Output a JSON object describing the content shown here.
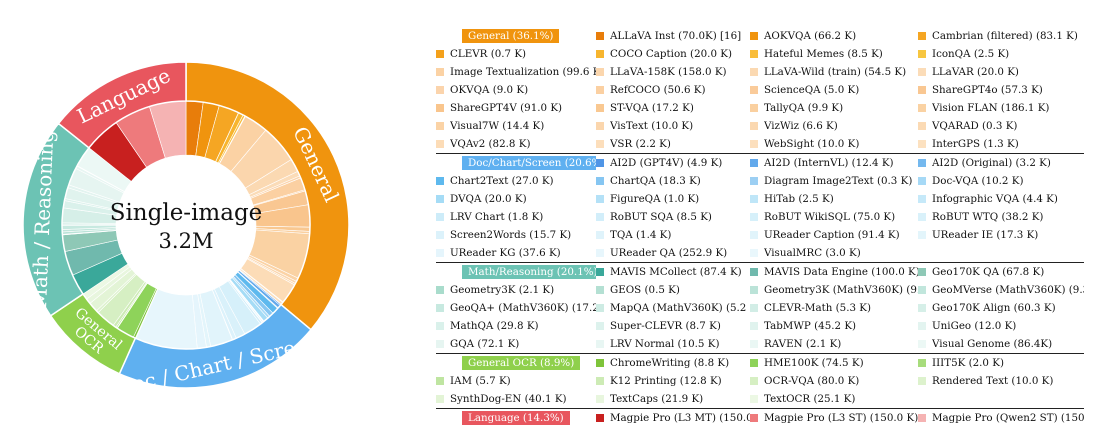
{
  "center": {
    "title": "Single-image",
    "total": "3.2M"
  },
  "chart_data": {
    "type": "sunburst",
    "center_label": "Single-image 3.2M",
    "groups": [
      {
        "name": "General",
        "label": "General (36.1%)",
        "percent": 36.1,
        "color": "#f0940e",
        "ring_labels": [
          "General"
        ],
        "items": [
          {
            "name": "ALLaVA Inst",
            "label": "ALLaVA Inst (70.0K) [16]",
            "value": 70.0,
            "color": "#e87d0a"
          },
          {
            "name": "AOKVQA",
            "label": "AOKVQA (66.2 K)",
            "value": 66.2,
            "color": "#f0940e"
          },
          {
            "name": "Cambrian (filtered)",
            "label": "Cambrian (filtered) (83.1 K)",
            "value": 83.1,
            "color": "#f5a623"
          },
          {
            "name": "CLEVR",
            "label": "CLEVR (0.7 K)",
            "value": 0.7,
            "color": "#f4a11b"
          },
          {
            "name": "COCO Caption",
            "label": "COCO Caption (20.0 K)",
            "value": 20.0,
            "color": "#f7b52e"
          },
          {
            "name": "Hateful Memes",
            "label": "Hateful Memes (8.5 K)",
            "value": 8.5,
            "color": "#f9bd3a"
          },
          {
            "name": "IconQA",
            "label": "IconQA (2.5 K)",
            "value": 2.5,
            "color": "#f7c640"
          },
          {
            "name": "Image Textualization",
            "label": "Image Textualization (99.6 K)",
            "value": 99.6,
            "color": "#fbd2a4"
          },
          {
            "name": "LLaVA-158K",
            "label": "LLaVA-158K (158.0 K)",
            "value": 158.0,
            "color": "#fbd6ad"
          },
          {
            "name": "LLaVA-Wild (train)",
            "label": "LLaVA-Wild (train) (54.5 K)",
            "value": 54.5,
            "color": "#fbd9b2"
          },
          {
            "name": "LLaVAR",
            "label": "LLaVAR (20.0 K)",
            "value": 20.0,
            "color": "#fbdcb8"
          },
          {
            "name": "OKVQA",
            "label": "OKVQA (9.0 K)",
            "value": 9.0,
            "color": "#fbd4ac"
          },
          {
            "name": "RefCOCO",
            "label": "RefCOCO (50.6 K)",
            "value": 50.6,
            "color": "#fbd0a2"
          },
          {
            "name": "ScienceQA",
            "label": "ScienceQA (5.0 K)",
            "value": 5.0,
            "color": "#facb9a"
          },
          {
            "name": "ShareGPT4o",
            "label": "ShareGPT4o (57.3 K)",
            "value": 57.3,
            "color": "#f9c792"
          },
          {
            "name": "ShareGPT4V",
            "label": "ShareGPT4V (91.0 K)",
            "value": 91.0,
            "color": "#f9c58d"
          },
          {
            "name": "ST-VQA",
            "label": "ST-VQA (17.2 K)",
            "value": 17.2,
            "color": "#f9c891"
          },
          {
            "name": "TallyQA",
            "label": "TallyQA (9.9 K)",
            "value": 9.9,
            "color": "#fad0a0"
          },
          {
            "name": "Vision FLAN",
            "label": "Vision FLAN (186.1 K)",
            "value": 186.1,
            "color": "#fad2a3"
          },
          {
            "name": "Visual7W",
            "label": "Visual7W (14.4 K)",
            "value": 14.4,
            "color": "#fbd3a6"
          },
          {
            "name": "VisText",
            "label": "VisText (10.0 K)",
            "value": 10.0,
            "color": "#fbd6ad"
          },
          {
            "name": "VizWiz",
            "label": "VizWiz (6.6 K)",
            "value": 6.6,
            "color": "#fbd8b0"
          },
          {
            "name": "VQARAD",
            "label": "VQARAD (0.3 K)",
            "value": 0.3,
            "color": "#fbdab4"
          },
          {
            "name": "VQAv2",
            "label": "VQAv2 (82.8 K)",
            "value": 82.8,
            "color": "#fcdcb7"
          },
          {
            "name": "VSR",
            "label": "VSR (2.2 K)",
            "value": 2.2,
            "color": "#fcdebb"
          },
          {
            "name": "WebSight",
            "label": "WebSight (10.0 K)",
            "value": 10.0,
            "color": "#fcdfbd"
          },
          {
            "name": "InterGPS",
            "label": "InterGPS (1.3 K)",
            "value": 1.3,
            "color": "#fce1c0"
          }
        ]
      },
      {
        "name": "Doc/Chart/Screen",
        "label": "Doc/Chart/Screen (20.6%)",
        "percent": 20.6,
        "color": "#5fb0f0",
        "ring_labels": [
          "Doc / Chart / Screen"
        ],
        "items": [
          {
            "name": "AI2D (GPT4V)",
            "label": "AI2D (GPT4V) (4.9 K)",
            "value": 4.9,
            "color": "#4f95e6"
          },
          {
            "name": "AI2D (InternVL)",
            "label": "AI2D (InternVL) (12.4 K)",
            "value": 12.4,
            "color": "#62a9ec"
          },
          {
            "name": "AI2D (Original)",
            "label": "AI2D (Original) (3.2 K)",
            "value": 3.2,
            "color": "#74b8ee"
          },
          {
            "name": "Chart2Text",
            "label": "Chart2Text (27.0 K)",
            "value": 27.0,
            "color": "#5eb9ee"
          },
          {
            "name": "ChartQA",
            "label": "ChartQA (18.3 K)",
            "value": 18.3,
            "color": "#86c6f2"
          },
          {
            "name": "Diagram Image2Text",
            "label": "Diagram Image2Text (0.3 K)",
            "value": 0.3,
            "color": "#9ccff3"
          },
          {
            "name": "Doc-VQA",
            "label": "Doc-VQA (10.2 K)",
            "value": 10.2,
            "color": "#a6d9f6"
          },
          {
            "name": "DVQA",
            "label": "DVQA (20.0 K)",
            "value": 20.0,
            "color": "#a5dcf6"
          },
          {
            "name": "FigureQA",
            "label": "FigureQA (1.0 K)",
            "value": 1.0,
            "color": "#b4e1f7"
          },
          {
            "name": "HiTab",
            "label": "HiTab (2.5 K)",
            "value": 2.5,
            "color": "#bfe6f8"
          },
          {
            "name": "Infographic VQA",
            "label": "Infographic VQA (4.4 K)",
            "value": 4.4,
            "color": "#c6e9f9"
          },
          {
            "name": "LRV Chart",
            "label": "LRV Chart (1.8 K)",
            "value": 1.8,
            "color": "#cdecf9"
          },
          {
            "name": "RoBUT SQA",
            "label": "RoBUT SQA (8.5 K)",
            "value": 8.5,
            "color": "#d2eefa"
          },
          {
            "name": "RoBUT WikiSQL",
            "label": "RoBUT WikiSQL (75.0 K)",
            "value": 75.0,
            "color": "#d6f0fa"
          },
          {
            "name": "RoBUT WTQ",
            "label": "RoBUT WTQ (38.2 K)",
            "value": 38.2,
            "color": "#d9f1fa"
          },
          {
            "name": "Screen2Words",
            "label": "Screen2Words (15.7 K)",
            "value": 15.7,
            "color": "#dcf2fb"
          },
          {
            "name": "TQA",
            "label": "TQA (1.4 K)",
            "value": 1.4,
            "color": "#dff3fb"
          },
          {
            "name": "UReader Caption",
            "label": "UReader Caption (91.4 K)",
            "value": 91.4,
            "color": "#e1f4fb"
          },
          {
            "name": "UReader IE",
            "label": "UReader IE (17.3 K)",
            "value": 17.3,
            "color": "#e3f5fb"
          },
          {
            "name": "UReader KG",
            "label": "UReader KG (37.6 K)",
            "value": 37.6,
            "color": "#e5f5fc"
          },
          {
            "name": "UReader QA",
            "label": "UReader QA (252.9 K)",
            "value": 252.9,
            "color": "#e7f6fc"
          },
          {
            "name": "VisualMRC",
            "label": "VisualMRC (3.0 K)",
            "value": 3.0,
            "color": "#e9f7fc"
          }
        ]
      },
      {
        "name": "General OCR",
        "label": "General OCR (8.9%)",
        "percent": 8.9,
        "color": "#8fd04c",
        "ring_labels": [
          "General",
          "OCR"
        ],
        "items": [
          {
            "name": "ChromeWriting",
            "label": "ChromeWriting (8.8 K)",
            "value": 8.8,
            "color": "#7ec43a"
          },
          {
            "name": "HME100K",
            "label": "HME100K (74.5 K)",
            "value": 74.5,
            "color": "#8ed35a"
          },
          {
            "name": "IIIT5K",
            "label": "IIIT5K (2.0 K)",
            "value": 2.0,
            "color": "#a7dc7c"
          },
          {
            "name": "IAM",
            "label": "IAM (5.7 K)",
            "value": 5.7,
            "color": "#bfe5a1"
          },
          {
            "name": "K12 Printing",
            "label": "K12 Printing (12.8 K)",
            "value": 12.8,
            "color": "#cdebb5"
          },
          {
            "name": "OCR-VQA",
            "label": "OCR-VQA (80.0 K)",
            "value": 80.0,
            "color": "#d6efc3"
          },
          {
            "name": "Rendered Text",
            "label": "Rendered Text (10.0 K)",
            "value": 10.0,
            "color": "#ddf2cd"
          },
          {
            "name": "SynthDog-EN",
            "label": "SynthDog-EN (40.1 K)",
            "value": 40.1,
            "color": "#e3f4d6"
          },
          {
            "name": "TextCaps",
            "label": "TextCaps (21.9 K)",
            "value": 21.9,
            "color": "#e8f6de"
          },
          {
            "name": "TextOCR",
            "label": "TextOCR (25.1 K)",
            "value": 25.1,
            "color": "#ecf8e4"
          }
        ]
      },
      {
        "name": "Math/Reasoning",
        "label": "Math/Reasoning (20.1%)",
        "percent": 20.1,
        "color": "#6cc3b4",
        "ring_labels": [
          "Math / Reasoning"
        ],
        "items": [
          {
            "name": "MAVIS MCollect",
            "label": "MAVIS MCollect (87.4 K)",
            "value": 87.4,
            "color": "#3aa89a"
          },
          {
            "name": "MAVIS Data Engine",
            "label": "MAVIS Data Engine (100.0 K)",
            "value": 100.0,
            "color": "#70b9ad"
          },
          {
            "name": "Geo170K QA",
            "label": "Geo170K QA (67.8 K)",
            "value": 67.8,
            "color": "#8ec8b6"
          },
          {
            "name": "Geometry3K",
            "label": "Geometry3K (2.1 K)",
            "value": 2.1,
            "color": "#a9dccc"
          },
          {
            "name": "GEOS",
            "label": "GEOS (0.5 K)",
            "value": 0.5,
            "color": "#b4e0d3"
          },
          {
            "name": "Geometry3K (MathV360K)",
            "label": "Geometry3K (MathV360K) (9.7 K)",
            "value": 9.7,
            "color": "#bbe3d8"
          },
          {
            "name": "GeoMVerse (MathV360K)",
            "label": "GeoMVerse (MathV360K) (9.3 K)",
            "value": 9.3,
            "color": "#c1e6dc"
          },
          {
            "name": "GeoQA+ (MathV360K)",
            "label": "GeoQA+ (MathV360K) (17.2 K)",
            "value": 17.2,
            "color": "#c7e9e0"
          },
          {
            "name": "MapQA (MathV360K)",
            "label": "MapQA (MathV360K) (5.2 K)",
            "value": 5.2,
            "color": "#cdebe3"
          },
          {
            "name": "CLEVR-Math",
            "label": "CLEVR-Math (5.3 K)",
            "value": 5.3,
            "color": "#d2ede6"
          },
          {
            "name": "Geo170K Align",
            "label": "Geo170K Align (60.3 K)",
            "value": 60.3,
            "color": "#d6efe8"
          },
          {
            "name": "MathQA",
            "label": "MathQA (29.8 K)",
            "value": 29.8,
            "color": "#daf1eb"
          },
          {
            "name": "Super-CLEVR",
            "label": "Super-CLEVR (8.7 K)",
            "value": 8.7,
            "color": "#ddf2ed"
          },
          {
            "name": "TabMWP",
            "label": "TabMWP (45.2 K)",
            "value": 45.2,
            "color": "#e0f3ee"
          },
          {
            "name": "UniGeo",
            "label": "UniGeo (12.0 K)",
            "value": 12.0,
            "color": "#e3f4f0"
          },
          {
            "name": "GQA",
            "label": "GQA (72.1 K)",
            "value": 72.1,
            "color": "#e6f5f1"
          },
          {
            "name": "LRV Normal",
            "label": "LRV Normal (10.5 K)",
            "value": 10.5,
            "color": "#e8f6f3"
          },
          {
            "name": "RAVEN",
            "label": "RAVEN (2.1 K)",
            "value": 2.1,
            "color": "#eaf7f4"
          },
          {
            "name": "Visual Genome",
            "label": "Visual Genome (86.4K)",
            "value": 86.4,
            "color": "#ecf8f5"
          }
        ]
      },
      {
        "name": "Language",
        "label": "Language (14.3%)",
        "percent": 14.3,
        "color": "#e8565e",
        "ring_labels": [
          "Language"
        ],
        "items": [
          {
            "name": "Magpie Pro (L3 MT)",
            "label": "Magpie Pro (L3 MT) (150.0 K)",
            "value": 150.0,
            "color": "#c8201f"
          },
          {
            "name": "Magpie Pro (L3 ST)",
            "label": "Magpie Pro (L3 ST) (150.0 K)",
            "value": 150.0,
            "color": "#ee7a7c"
          },
          {
            "name": "Magpie Pro (Qwen2 ST)",
            "label": "Magpie Pro (Qwen2 ST) (150.0 K)",
            "value": 150.0,
            "color": "#f5b3b3"
          }
        ]
      }
    ]
  },
  "legend_layout": [
    {
      "group": 0,
      "rows": [
        [
          "H",
          0,
          1,
          2
        ],
        [
          3,
          4,
          5,
          6
        ],
        [
          7,
          8,
          9,
          10
        ],
        [
          11,
          12,
          13,
          14
        ],
        [
          15,
          16,
          17,
          18
        ],
        [
          19,
          20,
          21,
          22
        ],
        [
          23,
          24,
          25,
          26
        ]
      ]
    },
    {
      "group": 1,
      "rows": [
        [
          "H",
          0,
          1,
          2
        ],
        [
          3,
          4,
          5,
          6
        ],
        [
          7,
          8,
          9,
          10
        ],
        [
          11,
          12,
          13,
          14
        ],
        [
          15,
          16,
          17,
          18
        ],
        [
          19,
          20,
          21
        ]
      ]
    },
    {
      "group": 3,
      "rows": [
        [
          "H",
          0,
          1,
          2
        ],
        [
          3,
          4,
          5,
          6
        ],
        [
          7,
          8,
          9,
          10
        ],
        [
          11,
          12,
          13,
          14
        ],
        [
          15,
          16,
          17,
          18
        ]
      ]
    },
    {
      "group": 2,
      "rows": [
        [
          "H",
          0,
          1,
          2
        ],
        [
          3,
          4,
          5,
          6
        ],
        [
          7,
          8,
          9
        ]
      ]
    },
    {
      "group": 4,
      "rows": [
        [
          "H",
          0,
          1,
          2
        ]
      ]
    }
  ],
  "chart_order": [
    0,
    1,
    2,
    3,
    4
  ]
}
